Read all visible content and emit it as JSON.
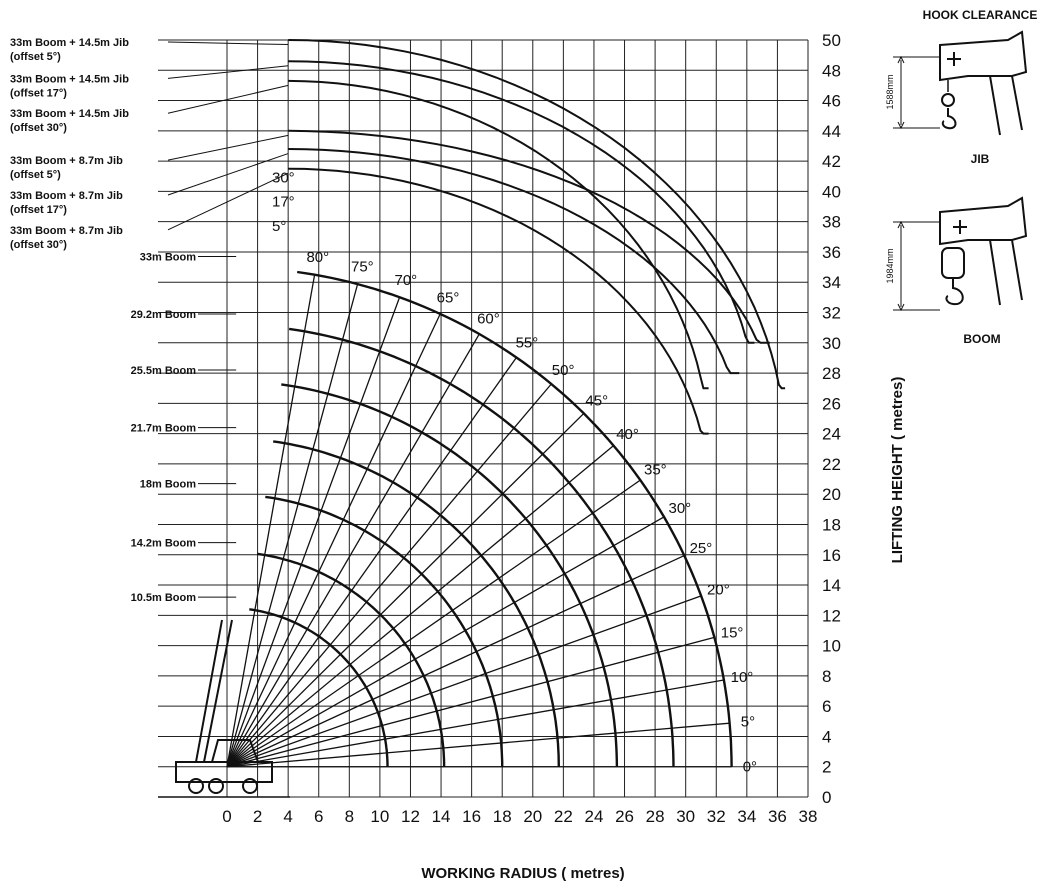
{
  "chart_data": {
    "type": "line",
    "xlabel": "WORKING RADIUS ( metres)",
    "ylabel": "LIFTING HEIGHT ( metres)",
    "xlim": [
      -2,
      38
    ],
    "ylim": [
      0,
      50
    ],
    "x_ticks": [
      0,
      2,
      4,
      6,
      8,
      10,
      12,
      14,
      16,
      18,
      20,
      22,
      24,
      26,
      28,
      30,
      32,
      34,
      36,
      38
    ],
    "y_ticks": [
      0,
      2,
      4,
      6,
      8,
      10,
      12,
      14,
      16,
      18,
      20,
      22,
      24,
      26,
      28,
      30,
      32,
      34,
      36,
      38,
      40,
      42,
      44,
      46,
      48,
      50
    ],
    "grid": true,
    "pivot": {
      "x": 0,
      "y": 2
    },
    "boom_curves": [
      {
        "label": "10.5m Boom",
        "length": 10.5,
        "label_height": 13.2
      },
      {
        "label": "14.2m Boom",
        "length": 14.2,
        "label_height": 16.8
      },
      {
        "label": "18m Boom",
        "length": 18,
        "label_height": 20.7
      },
      {
        "label": "21.7m Boom",
        "length": 21.7,
        "label_height": 24.4
      },
      {
        "label": "25.5m Boom",
        "length": 25.5,
        "label_height": 28.2
      },
      {
        "label": "29.2m Boom",
        "length": 29.2,
        "label_height": 31.9
      },
      {
        "label": "33m Boom",
        "length": 33,
        "label_height": 35.7
      }
    ],
    "jib_curves": [
      {
        "label_lines": [
          "33m Boom + 8.7m Jib",
          "(offset 30°)"
        ],
        "top_height": 41.5,
        "end_radius": 31.5,
        "end_height": 24,
        "label_height": 37.2
      },
      {
        "label_lines": [
          "33m Boom + 8.7m Jib",
          "(offset 17°)"
        ],
        "top_height": 42.8,
        "end_radius": 33.5,
        "end_height": 28,
        "label_height": 39.5
      },
      {
        "label_lines": [
          "33m Boom + 8.7m Jib",
          "(offset 5°)"
        ],
        "top_height": 44,
        "end_radius": 35.5,
        "end_height": 30,
        "label_height": 41.8
      },
      {
        "label_lines": [
          "33m Boom + 14.5m Jib",
          "(offset 30°)"
        ],
        "top_height": 47.3,
        "end_radius": 31.5,
        "end_height": 27,
        "label_height": 44.9
      },
      {
        "label_lines": [
          "33m Boom + 14.5m Jib",
          "(offset 17°)"
        ],
        "top_height": 48.6,
        "end_radius": 34.5,
        "end_height": 30,
        "label_height": 47.2
      },
      {
        "label_lines": [
          "33m Boom + 14.5m Jib",
          "(offset 5°)"
        ],
        "top_height": 50,
        "end_radius": 36.5,
        "end_height": 27,
        "label_height": 49.6
      }
    ],
    "angle_lines": [
      {
        "angle": 0,
        "label": "0°"
      },
      {
        "angle": 5,
        "label": "5°"
      },
      {
        "angle": 10,
        "label": "10°"
      },
      {
        "angle": 15,
        "label": "15°"
      },
      {
        "angle": 20,
        "label": "20°"
      },
      {
        "angle": 25,
        "label": "25°"
      },
      {
        "angle": 30,
        "label": "30°"
      },
      {
        "angle": 35,
        "label": "35°"
      },
      {
        "angle": 40,
        "label": "40°"
      },
      {
        "angle": 45,
        "label": "45°"
      },
      {
        "angle": 50,
        "label": "50°"
      },
      {
        "angle": 55,
        "label": "55°"
      },
      {
        "angle": 60,
        "label": "60°"
      },
      {
        "angle": 65,
        "label": "65°"
      },
      {
        "angle": 70,
        "label": "70°"
      },
      {
        "angle": 75,
        "label": "75°"
      },
      {
        "angle": 80,
        "label": "80°"
      }
    ],
    "jib_offset_labels": [
      "30°",
      "17°",
      "5°"
    ]
  },
  "hook_clearance": {
    "title": "HOOK CLEARANCE",
    "jib": {
      "label": "JIB",
      "dimension": "1588mm"
    },
    "boom": {
      "label": "BOOM",
      "dimension": "1984mm"
    }
  }
}
